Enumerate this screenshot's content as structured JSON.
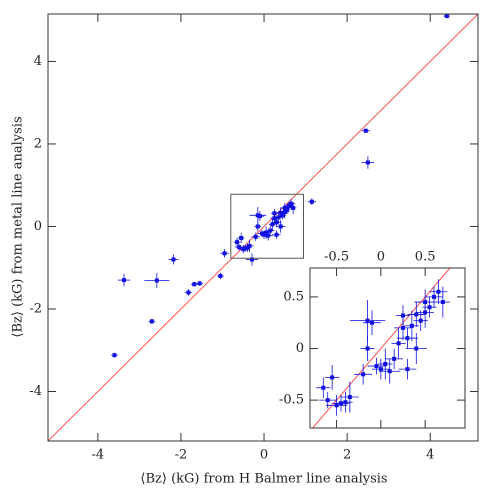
{
  "chart_data": {
    "type": "scatter",
    "x_label": "⟨Bz⟩ (kG) from H Balmer line analysis",
    "y_label": "⟨Bz⟩ (kG) from metal line analysis",
    "color": "#1010e0",
    "line_color": "#ff5050",
    "identity_line": true,
    "xlim": [
      -5.2,
      5.15
    ],
    "ylim": [
      -5.2,
      5.15
    ],
    "xticks": [
      -4,
      -2,
      0,
      2,
      4
    ],
    "yticks": [
      -4,
      -2,
      0,
      2,
      4
    ],
    "x": [
      4.4,
      2.45,
      2.5,
      1.15,
      -3.6,
      -3.37,
      -2.7,
      -2.58,
      -2.18,
      -1.82,
      -1.68,
      -1.55,
      -1.05,
      -0.95,
      -0.29,
      -0.65,
      -0.6,
      -0.55,
      -0.5,
      -0.45,
      -0.4,
      -0.35,
      -0.2,
      -0.15,
      -0.15,
      0,
      0.05,
      -0.05,
      0.1,
      0.15,
      0.2,
      0.25,
      0.3,
      0.35,
      0.4,
      0.45,
      0.5,
      0.5,
      0.55,
      0.6,
      0.65,
      0.7,
      0.3,
      0.4,
      0.25,
      -0.1
    ],
    "y": [
      5.1,
      2.32,
      1.55,
      0.6,
      -3.12,
      -1.3,
      -2.3,
      -1.31,
      -0.8,
      -1.6,
      -1.4,
      -1.38,
      -1.2,
      -0.65,
      -0.8,
      -0.38,
      -0.5,
      -0.28,
      -0.55,
      -0.53,
      -0.52,
      -0.47,
      -0.25,
      0.27,
      0,
      -0.2,
      -0.15,
      -0.17,
      -0.22,
      -0.1,
      0.05,
      0.2,
      0.1,
      0.22,
      0.33,
      0.27,
      0.35,
      0.45,
      0.4,
      0.5,
      0.55,
      0.45,
      -0.2,
      0,
      0.32,
      0.25
    ],
    "x_err": [
      0.08,
      0.1,
      0.15,
      0.1,
      0.08,
      0.15,
      0.08,
      0.3,
      0.12,
      0.08,
      0.08,
      0.08,
      0.08,
      0.1,
      0.15,
      0.08,
      0.1,
      0.08,
      0.12,
      0.1,
      0.08,
      0.1,
      0.1,
      0.2,
      0.08,
      0.1,
      0.08,
      0.1,
      0.12,
      0.1,
      0.08,
      0.1,
      0.12,
      0.08,
      0.1,
      0.08,
      0.1,
      0.12,
      0.08,
      0.1,
      0.1,
      0.08,
      0.1,
      0.12,
      0.08,
      0.1
    ],
    "y_err": [
      0.05,
      0.05,
      0.15,
      0.08,
      0.06,
      0.15,
      0.06,
      0.18,
      0.12,
      0.08,
      0.06,
      0.06,
      0.08,
      0.1,
      0.15,
      0.1,
      0.08,
      0.12,
      0.1,
      0.08,
      0.1,
      0.15,
      0.1,
      0.2,
      0.12,
      0.1,
      0.15,
      0.08,
      0.12,
      0.1,
      0.15,
      0.12,
      0.1,
      0.15,
      0.12,
      0.1,
      0.15,
      0.12,
      0.1,
      0.1,
      0.12,
      0.15,
      0.1,
      0.15,
      0.1,
      0.12
    ],
    "inset": {
      "xlim": [
        -0.8,
        0.95
      ],
      "ylim": [
        -0.77,
        0.78
      ],
      "xticks": [
        -0.5,
        0,
        0.5
      ],
      "yticks": [
        -0.5,
        0,
        0.5
      ]
    }
  }
}
